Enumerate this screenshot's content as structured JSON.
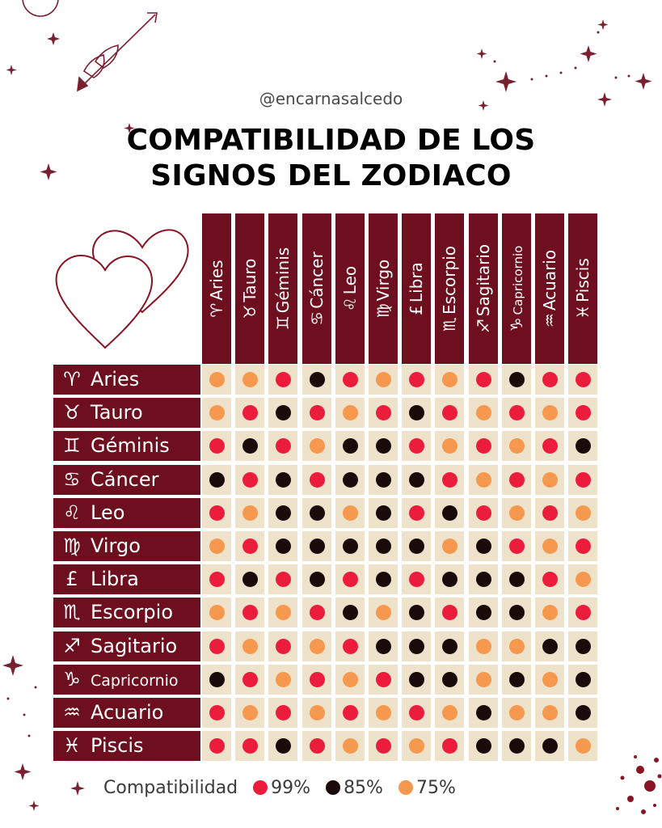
{
  "header": {
    "handle": "@encarnasalcedo",
    "title_line1": "COMPATIBILIDAD DE LOS",
    "title_line2": "SIGNOS DEL ZODIACO"
  },
  "colors": {
    "header_bg": "#6d0f1e",
    "cell_bg": "#efe2cb",
    "level_99": "#ec1c3c",
    "level_85": "#1a0a0a",
    "level_75": "#f7984f"
  },
  "chart_data": {
    "type": "table",
    "columns": [
      {
        "symbol": "♈",
        "label": "Aries"
      },
      {
        "symbol": "♉",
        "label": "Tauro"
      },
      {
        "symbol": "♊",
        "label": "Géminis"
      },
      {
        "symbol": "♋",
        "label": "Cáncer"
      },
      {
        "symbol": "♌",
        "label": "Leo"
      },
      {
        "symbol": "♍",
        "label": "Virgo"
      },
      {
        "symbol": "£",
        "label": "Libra"
      },
      {
        "symbol": "♏",
        "label": "Escorpio"
      },
      {
        "symbol": "♐",
        "label": "Sagitario"
      },
      {
        "symbol": "♑",
        "label": "Capricornio"
      },
      {
        "symbol": "♒",
        "label": "Acuario"
      },
      {
        "symbol": "♓",
        "label": "Piscis"
      }
    ],
    "rows": [
      {
        "symbol": "♈",
        "label": "Aries",
        "values": [
          75,
          75,
          99,
          85,
          99,
          75,
          99,
          75,
          99,
          85,
          99,
          99
        ]
      },
      {
        "symbol": "♉",
        "label": "Tauro",
        "values": [
          75,
          99,
          85,
          99,
          75,
          99,
          85,
          99,
          75,
          99,
          75,
          99
        ]
      },
      {
        "symbol": "♊",
        "label": "Géminis",
        "values": [
          99,
          85,
          99,
          75,
          85,
          85,
          99,
          75,
          99,
          75,
          99,
          85
        ]
      },
      {
        "symbol": "♋",
        "label": "Cáncer",
        "values": [
          85,
          99,
          85,
          99,
          85,
          85,
          85,
          99,
          75,
          99,
          75,
          99
        ]
      },
      {
        "symbol": "♌",
        "label": "Leo",
        "values": [
          99,
          75,
          85,
          85,
          75,
          85,
          99,
          85,
          99,
          75,
          99,
          75
        ]
      },
      {
        "symbol": "♍",
        "label": "Virgo",
        "values": [
          75,
          99,
          85,
          85,
          85,
          85,
          85,
          75,
          85,
          99,
          75,
          99
        ]
      },
      {
        "symbol": "£",
        "label": "Libra",
        "values": [
          99,
          85,
          99,
          85,
          99,
          85,
          99,
          85,
          85,
          85,
          99,
          75
        ]
      },
      {
        "symbol": "♏",
        "label": "Escorpio",
        "values": [
          75,
          99,
          75,
          99,
          85,
          75,
          85,
          99,
          85,
          85,
          75,
          99
        ]
      },
      {
        "symbol": "♐",
        "label": "Sagitario",
        "values": [
          99,
          75,
          99,
          75,
          99,
          85,
          85,
          85,
          75,
          75,
          85,
          85
        ]
      },
      {
        "symbol": "♑",
        "label": "Capricornio",
        "values": [
          85,
          99,
          75,
          99,
          75,
          99,
          85,
          85,
          75,
          85,
          75,
          85
        ]
      },
      {
        "symbol": "♒",
        "label": "Acuario",
        "values": [
          99,
          75,
          99,
          75,
          99,
          75,
          99,
          75,
          85,
          75,
          75,
          85
        ]
      },
      {
        "symbol": "♓",
        "label": "Piscis",
        "values": [
          99,
          99,
          85,
          99,
          75,
          99,
          75,
          99,
          85,
          85,
          85,
          75
        ]
      }
    ],
    "legend": {
      "label": "Compatibilidad",
      "items": [
        {
          "value": 99,
          "text": "99%"
        },
        {
          "value": 85,
          "text": "85%"
        },
        {
          "value": 75,
          "text": "75%"
        }
      ]
    }
  }
}
